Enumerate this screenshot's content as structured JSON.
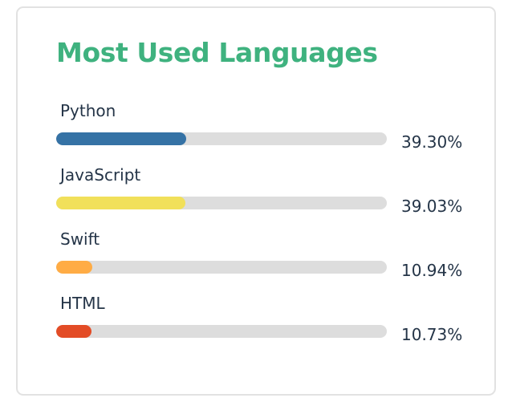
{
  "card": {
    "title": "Most Used Languages",
    "title_color": "#3fb27f"
  },
  "languages": [
    {
      "name": "Python",
      "percent_label": "39.30%",
      "percent": 39.3,
      "color": "#3572a5"
    },
    {
      "name": "JavaScript",
      "percent_label": "39.03%",
      "percent": 39.03,
      "color": "#f1e05a"
    },
    {
      "name": "Swift",
      "percent_label": "10.94%",
      "percent": 10.94,
      "color": "#ffac45"
    },
    {
      "name": "HTML",
      "percent_label": "10.73%",
      "percent": 10.73,
      "color": "#e34c26"
    }
  ],
  "track_color": "#dddddd",
  "text_color": "#243447"
}
